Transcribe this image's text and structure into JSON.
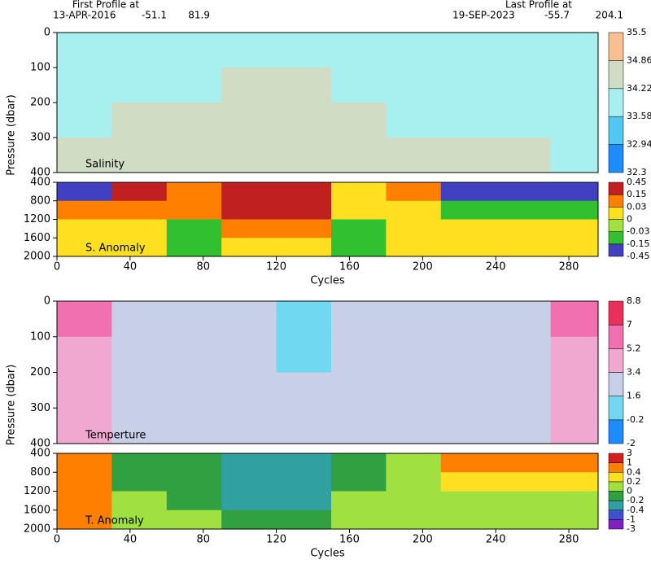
{
  "header": {
    "first_label": "First Profile at",
    "first_date": "13-APR-2016",
    "first_lat": "-51.1",
    "first_lon": "81.9",
    "last_label": "Last Profile at",
    "last_date": "19-SEP-2023",
    "last_lat": "-55.7",
    "last_lon": "204.1"
  },
  "chart_data": [
    {
      "type": "heatmap",
      "label": "Salinity",
      "y_label": "Pressure (dbar)",
      "invert_y": true,
      "xbins": [
        0,
        30,
        60,
        90,
        120,
        150,
        180,
        210,
        240,
        270,
        296
      ],
      "ybins": [
        0,
        100,
        200,
        300,
        400
      ],
      "xlim": [
        0,
        296
      ],
      "ylim": [
        0,
        400
      ],
      "yticks": [
        0,
        100,
        200,
        300,
        400
      ],
      "values": [
        [
          33.9,
          33.9,
          33.9,
          33.9,
          33.9,
          33.9,
          33.9,
          33.9,
          33.9,
          33.9
        ],
        [
          34.0,
          34.0,
          34.1,
          34.3,
          34.3,
          34.0,
          34.0,
          34.0,
          34.0,
          34.0
        ],
        [
          34.1,
          34.3,
          34.3,
          34.5,
          34.5,
          34.3,
          34.2,
          34.2,
          34.2,
          34.1
        ],
        [
          34.3,
          34.4,
          34.4,
          34.6,
          34.7,
          34.4,
          34.3,
          34.3,
          34.3,
          34.2
        ]
      ],
      "levels": [
        32.3,
        32.94,
        33.58,
        34.22,
        34.86,
        35.5
      ],
      "colors": [
        "#1e8cff",
        "#50c8f0",
        "#a8f0f0",
        "#d0dcc4",
        "#f8c090"
      ]
    },
    {
      "type": "heatmap",
      "label": "S. Anomaly",
      "x_label": "Cycles",
      "invert_y": true,
      "xbins": [
        0,
        30,
        60,
        90,
        120,
        150,
        180,
        210,
        240,
        270,
        296
      ],
      "ybins": [
        400,
        800,
        1200,
        1600,
        2000
      ],
      "xlim": [
        0,
        296
      ],
      "xticks": [
        0,
        40,
        80,
        120,
        160,
        200,
        240,
        280
      ],
      "ylim": [
        400,
        2000
      ],
      "yticks": [
        400,
        800,
        1200,
        1600,
        2000
      ],
      "values": [
        [
          -0.2,
          0.2,
          0.1,
          0.2,
          0.2,
          0.0,
          0.1,
          -0.2,
          -0.2,
          -0.2
        ],
        [
          0.05,
          0.05,
          0.05,
          0.2,
          0.2,
          0.02,
          0.0,
          -0.1,
          -0.1,
          -0.1
        ],
        [
          0.02,
          0.02,
          -0.05,
          0.05,
          0.05,
          -0.05,
          0.0,
          0.0,
          0.0,
          0.0
        ],
        [
          0.01,
          0.01,
          -0.05,
          0.01,
          0.01,
          -0.05,
          0.01,
          0.01,
          0.01,
          0.01
        ]
      ],
      "levels": [
        -0.45,
        -0.15,
        -0.03,
        0,
        0.03,
        0.15,
        0.45
      ],
      "colors": [
        "#4040c0",
        "#30c030",
        "#a0e040",
        "#ffe020",
        "#ff8000",
        "#c02020"
      ]
    },
    {
      "type": "heatmap",
      "label": "Temperture",
      "y_label": "Pressure (dbar)",
      "invert_y": true,
      "xbins": [
        0,
        30,
        60,
        90,
        120,
        150,
        180,
        210,
        240,
        270,
        296
      ],
      "ybins": [
        0,
        100,
        200,
        300,
        400
      ],
      "xlim": [
        0,
        296
      ],
      "ylim": [
        0,
        400
      ],
      "yticks": [
        0,
        100,
        200,
        300,
        400
      ],
      "values": [
        [
          5.5,
          3.0,
          2.0,
          2.5,
          0.5,
          2.5,
          2.0,
          2.0,
          2.5,
          5.5
        ],
        [
          4.0,
          2.5,
          2.5,
          2.0,
          1.5,
          2.0,
          2.0,
          2.0,
          2.2,
          4.0
        ],
        [
          3.5,
          2.5,
          2.0,
          1.8,
          1.8,
          2.0,
          2.0,
          1.8,
          2.0,
          3.5
        ],
        [
          3.5,
          2.5,
          1.8,
          1.8,
          1.8,
          1.8,
          1.8,
          1.8,
          1.8,
          3.6
        ]
      ],
      "levels": [
        -2,
        -0.2,
        1.6,
        3.4,
        5.2,
        7,
        8.8
      ],
      "colors": [
        "#1e8cff",
        "#70d8f0",
        "#c8d0e8",
        "#f0a8d0",
        "#f070b0",
        "#e8305c"
      ]
    },
    {
      "type": "heatmap",
      "label": "T. Anomaly",
      "x_label": "Cycles",
      "invert_y": true,
      "xbins": [
        0,
        30,
        60,
        90,
        120,
        150,
        180,
        210,
        240,
        270,
        296
      ],
      "ybins": [
        400,
        800,
        1200,
        1600,
        2000
      ],
      "xlim": [
        0,
        296
      ],
      "xticks": [
        0,
        40,
        80,
        120,
        160,
        200,
        240,
        280
      ],
      "ylim": [
        400,
        2000
      ],
      "yticks": [
        400,
        800,
        1200,
        1600,
        2000
      ],
      "values": [
        [
          0.5,
          -0.1,
          -0.1,
          -0.3,
          -0.3,
          -0.1,
          0.1,
          0.5,
          0.5,
          0.5
        ],
        [
          0.5,
          -0.1,
          -0.1,
          -0.3,
          -0.3,
          -0.1,
          0.1,
          0.3,
          0.3,
          0.3
        ],
        [
          0.5,
          0.1,
          -0.1,
          -0.3,
          -0.3,
          0.1,
          0.1,
          0.1,
          0.1,
          0.1
        ],
        [
          0.5,
          0.1,
          0.1,
          -0.1,
          -0.1,
          0.1,
          0.1,
          0.1,
          0.1,
          0.1
        ]
      ],
      "levels": [
        -3,
        -1,
        -0.4,
        -0.2,
        0,
        0.2,
        0.4,
        1,
        3
      ],
      "colors": [
        "#8020c0",
        "#4050d0",
        "#30a0a0",
        "#30a040",
        "#a0e040",
        "#ffe020",
        "#ff8000",
        "#d02020"
      ]
    }
  ]
}
